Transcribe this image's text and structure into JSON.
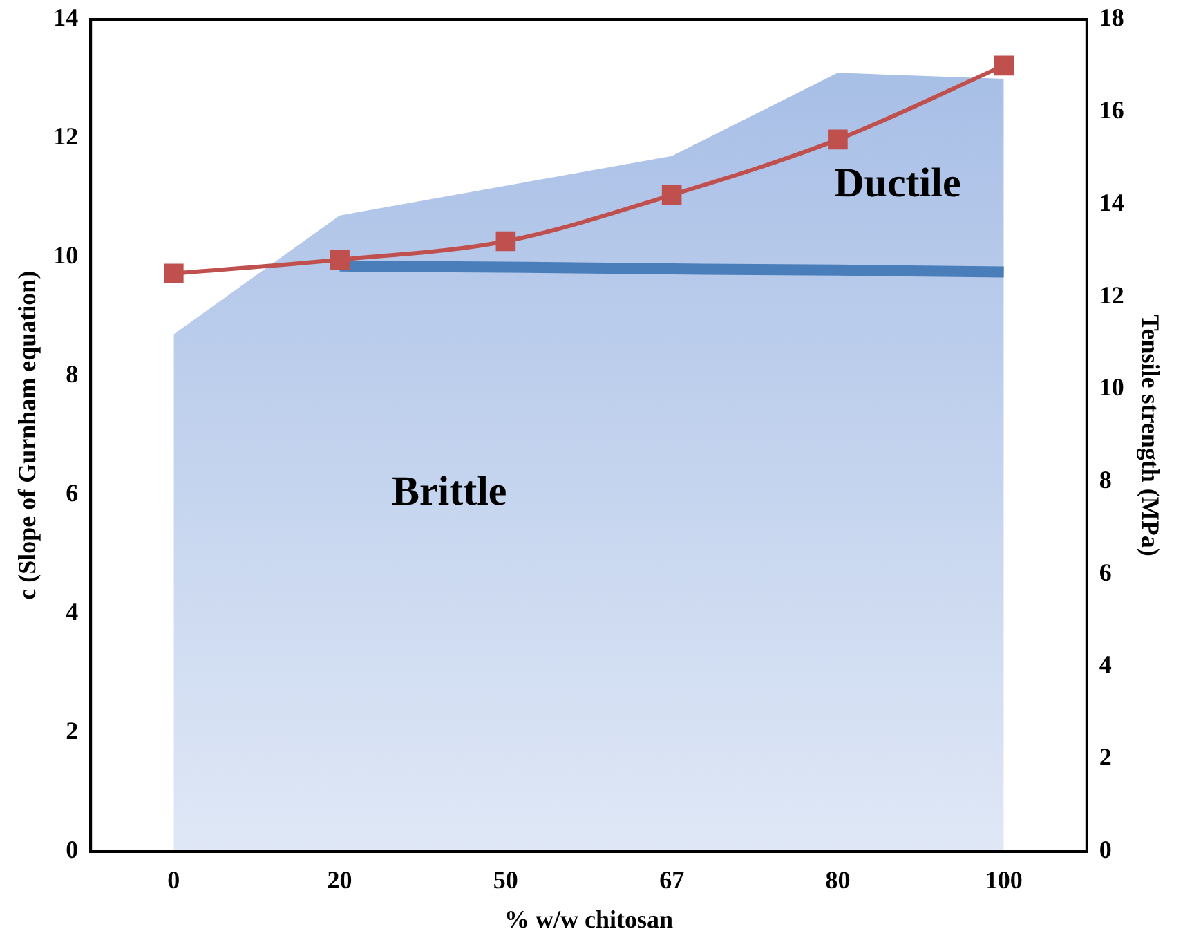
{
  "chart_data": {
    "type": "line",
    "xlabel": "% w/w chitosan",
    "ylabel": "c (Slope of Gurnham equation)",
    "y2label": "Tensile strength (MPa)",
    "categories": [
      "0",
      "20",
      "50",
      "67",
      "80",
      "100"
    ],
    "series": [
      {
        "type": "area",
        "color": "#a4bce5",
        "values": [
          8.7,
          10.7,
          11.2,
          11.7,
          13.1,
          13.0
        ]
      },
      {
        "color": "#4a7ebb",
        "values": [
          null,
          9.85,
          9.83,
          9.8,
          9.78,
          9.75
        ]
      },
      {
        "color": "#c0504d",
        "axis": "y2",
        "marker": "square",
        "values": [
          12.5,
          12.8,
          13.2,
          14.2,
          15.4,
          17.0
        ]
      }
    ],
    "ylim": [
      0,
      14
    ],
    "yticks": [
      0,
      2,
      4,
      6,
      8,
      10,
      12,
      14
    ],
    "y2lim": [
      0,
      18
    ],
    "y2ticks": [
      0,
      2,
      4,
      6,
      8,
      10,
      12,
      14,
      16,
      18
    ],
    "annotations": [
      "Ductile",
      "Brittle"
    ],
    "grid": false,
    "legend": false
  }
}
